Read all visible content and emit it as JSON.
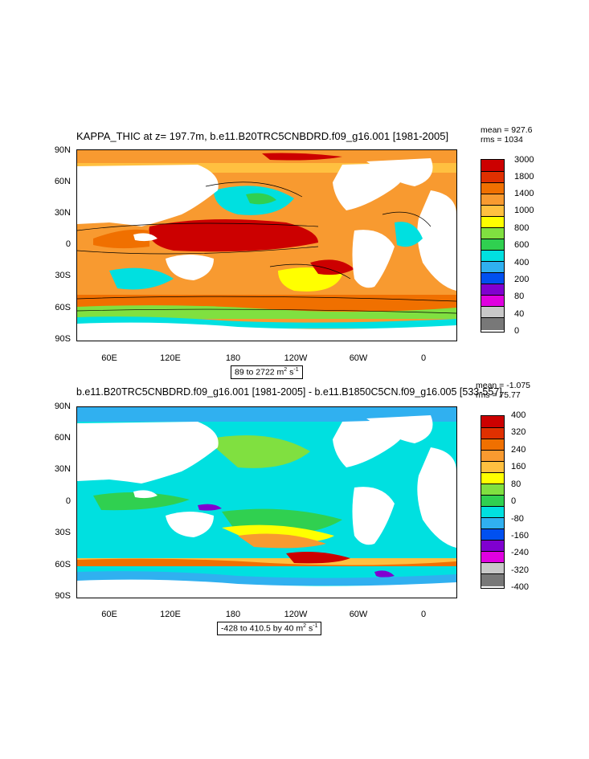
{
  "panels": [
    {
      "title": "KAPPA_THIC at z= 197.7m, b.e11.B20TRC5CNBDRD.f09_g16.001 [1981-2005]",
      "stats": {
        "mean": "mean = 927.6",
        "rms": "rms = 1034"
      },
      "range_text": "89 to 2722 m",
      "range_units_sup": "2",
      "range_units_tail": " s",
      "range_units_sup2": "-1",
      "colorbar": {
        "labels": [
          "3000",
          "1800",
          "1400",
          "1000",
          "800",
          "600",
          "400",
          "200",
          "80",
          "40",
          "0"
        ],
        "colors": [
          "#cc0000",
          "#e03000",
          "#f07000",
          "#f89a30",
          "#ffc040",
          "#ffff00",
          "#80e040",
          "#30d050",
          "#00e0e0",
          "#30b0f0",
          "#0050f0",
          "#8000d0",
          "#e000e0",
          "#c8c8c8",
          "#787878"
        ]
      }
    },
    {
      "title": "b.e11.B20TRC5CNBDRD.f09_g16.001 [1981-2005] - b.e11.B1850C5CN.f09_g16.005 [533-557]",
      "stats": {
        "mean": "mean = -1.075",
        "rms": "rms = 75.77"
      },
      "range_text": "-428 to 410.5 by 40 m",
      "range_units_sup": "2",
      "range_units_tail": " s",
      "range_units_sup2": "-1",
      "colorbar": {
        "labels": [
          "400",
          "320",
          "240",
          "160",
          "80",
          "0",
          "-80",
          "-160",
          "-240",
          "-320",
          "-400"
        ],
        "colors": [
          "#cc0000",
          "#e03000",
          "#f07000",
          "#f89a30",
          "#ffc040",
          "#ffff00",
          "#80e040",
          "#30d050",
          "#00e0e0",
          "#30b0f0",
          "#0050f0",
          "#8000d0",
          "#e000e0",
          "#c8c8c8",
          "#787878"
        ]
      }
    }
  ],
  "axes": {
    "y_ticks": [
      "90N",
      "60N",
      "30N",
      "0",
      "30S",
      "60S",
      "90S"
    ],
    "x_ticks": [
      "60E",
      "120E",
      "180",
      "120W",
      "60W",
      "0"
    ]
  },
  "chart_data": [
    {
      "type": "heatmap",
      "title": "KAPPA_THIC at z= 197.7m, b.e11.B20TRC5CNBDRD.f09_g16.001 [1981-2005]",
      "variable": "KAPPA_THIC",
      "units": "m2 s-1",
      "range": [
        89,
        2722
      ],
      "mean": 927.6,
      "rms": 1034,
      "contour_levels": [
        0,
        40,
        80,
        200,
        400,
        600,
        800,
        1000,
        1400,
        1800,
        3000
      ],
      "lat_ticks": [
        "90N",
        "60N",
        "30N",
        "0",
        "30S",
        "60S",
        "90S"
      ],
      "lon_ticks": [
        "60E",
        "120E",
        "180",
        "120W",
        "60W",
        "0"
      ]
    },
    {
      "type": "heatmap",
      "title": "b.e11.B20TRC5CNBDRD.f09_g16.001 [1981-2005] - b.e11.B1850C5CN.f09_g16.005 [533-557]",
      "units": "m2 s-1",
      "range": [
        -428,
        410.5
      ],
      "contour_interval": 40,
      "mean": -1.075,
      "rms": 75.77,
      "contour_levels": [
        -400,
        -320,
        -240,
        -160,
        -80,
        0,
        80,
        160,
        240,
        320,
        400
      ],
      "lat_ticks": [
        "90N",
        "60N",
        "30N",
        "0",
        "30S",
        "60S",
        "90S"
      ],
      "lon_ticks": [
        "60E",
        "120E",
        "180",
        "120W",
        "60W",
        "0"
      ]
    }
  ]
}
